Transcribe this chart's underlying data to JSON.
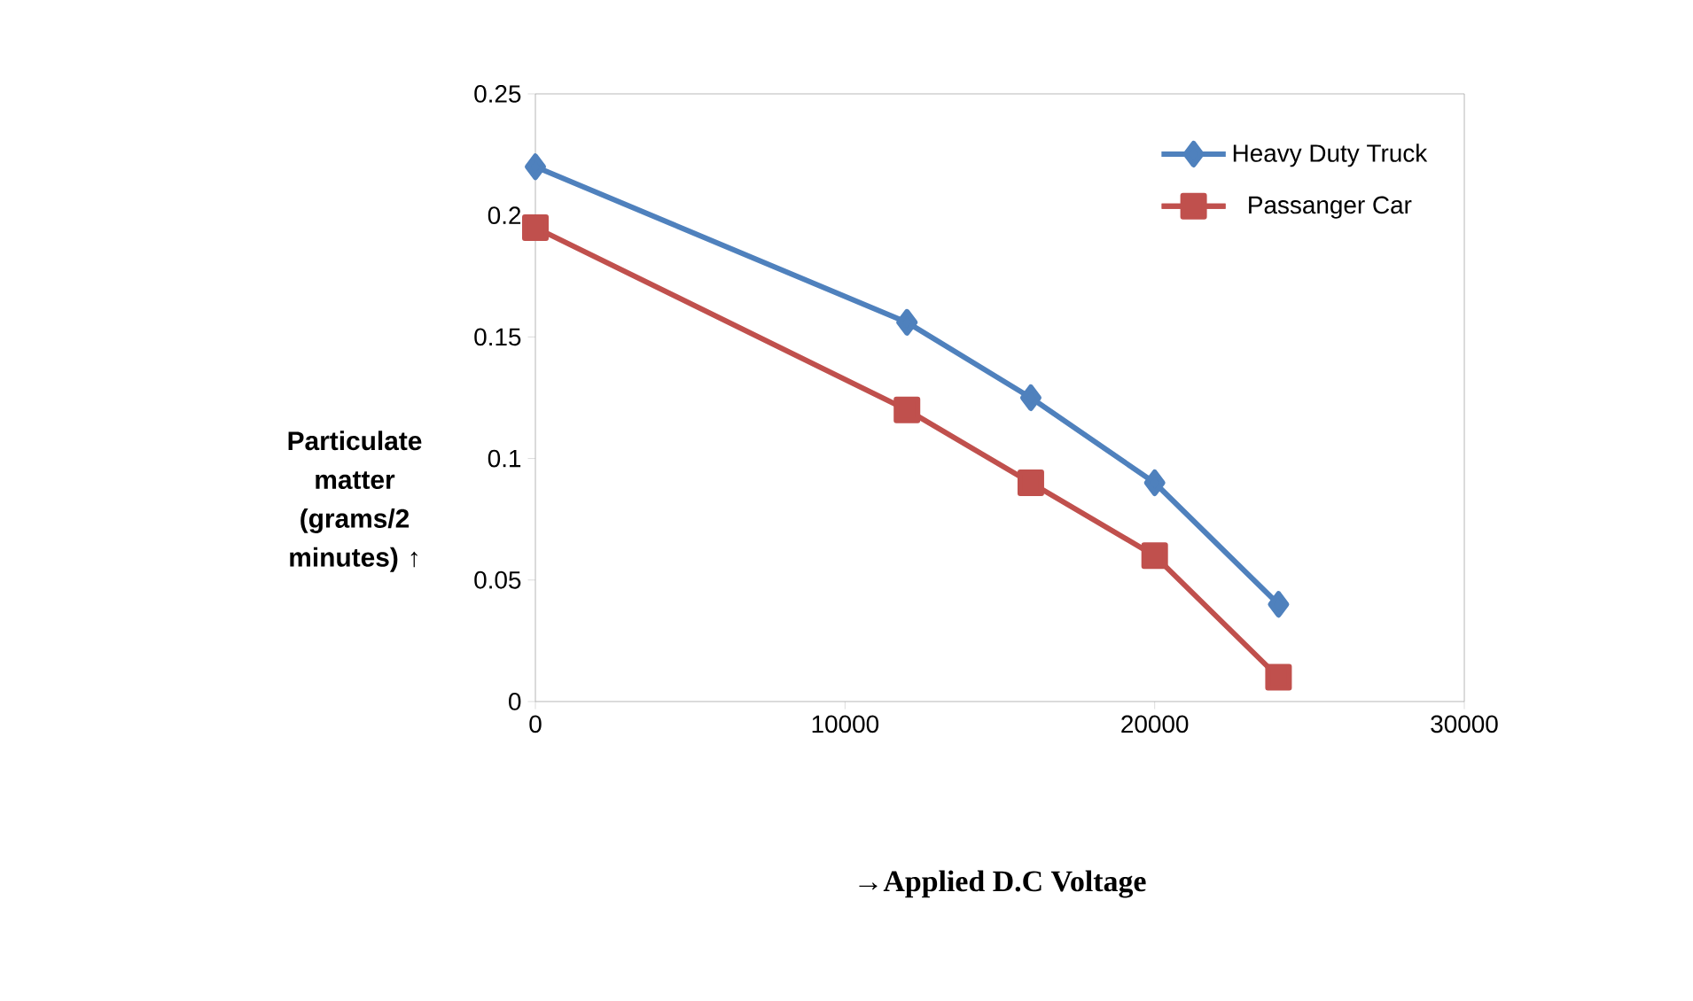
{
  "chart_data": {
    "type": "line",
    "xlabel": "→Applied D.C Voltage",
    "ylabel": "Particulate matter (grams/2 minutes) ↑",
    "x": [
      0,
      12000,
      16000,
      20000,
      24000
    ],
    "series": [
      {
        "name": "Heavy Duty Truck",
        "color": "#4f81bd",
        "marker": "diamond",
        "values": [
          0.22,
          0.156,
          0.125,
          0.09,
          0.04
        ]
      },
      {
        "name": "Passanger Car",
        "color": "#c0504d",
        "marker": "square",
        "values": [
          0.195,
          0.12,
          0.09,
          0.06,
          0.01
        ]
      }
    ],
    "xlim": [
      0,
      30000
    ],
    "xticks": [
      0,
      10000,
      20000,
      30000
    ],
    "ylim": [
      0,
      0.25
    ],
    "yticks": [
      0,
      0.05,
      0.1,
      0.15,
      0.2,
      0.25
    ],
    "grid": false,
    "legend": "top right",
    "line_style": "solid"
  }
}
